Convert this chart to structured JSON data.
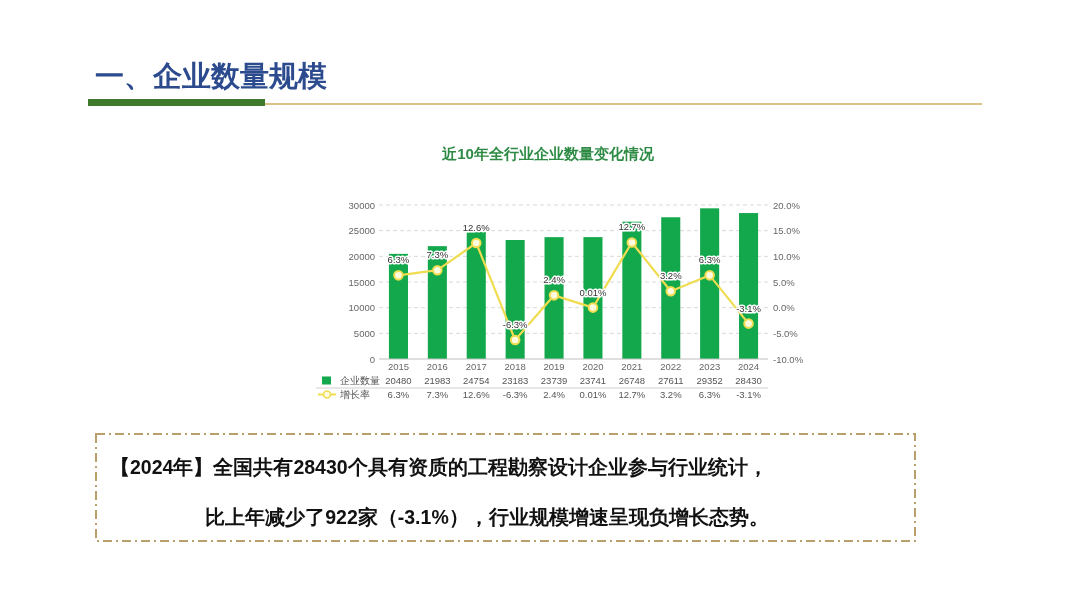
{
  "chart_data": {
    "type": "bar",
    "title": "一、企业数量规模",
    "subtitle": "近10年全行业企业数量变化情况",
    "categories": [
      "2015",
      "2016",
      "2017",
      "2018",
      "2019",
      "2020",
      "2021",
      "2022",
      "2023",
      "2024"
    ],
    "series": [
      {
        "name": "企业数量",
        "color": "#12a84b",
        "values": [
          20480,
          21983,
          24754,
          23183,
          23739,
          23741,
          26748,
          27611,
          29352,
          28430
        ]
      },
      {
        "name": "增长率",
        "type": "line",
        "axis": "y2",
        "color": "#f0dc50",
        "values": [
          6.3,
          7.3,
          12.6,
          -6.3,
          2.4,
          0.01,
          12.7,
          3.2,
          6.3,
          -3.1
        ],
        "value_labels": [
          "6.3%",
          "7.3%",
          "12.6%",
          "-6.3%",
          "2.4%",
          "0.01%",
          "12.7%",
          "3.2%",
          "6.3%",
          "-3.1%"
        ]
      }
    ],
    "ylim": [
      0,
      30000
    ],
    "yticks": [
      0,
      5000,
      10000,
      15000,
      20000,
      25000,
      30000
    ],
    "y2lim": [
      -10,
      20
    ],
    "y2ticks": [
      {
        "value": -10,
        "label": "-10.0%"
      },
      {
        "value": -5,
        "label": "-5.0%"
      },
      {
        "value": 0,
        "label": "0.0%"
      },
      {
        "value": 5,
        "label": "5.0%"
      },
      {
        "value": 10,
        "label": "10.0%"
      },
      {
        "value": 15,
        "label": "15.0%"
      },
      {
        "value": 20,
        "label": "20.0%"
      }
    ],
    "grid": "y",
    "legend": "bottom",
    "data_labels": true,
    "marker": "circle",
    "line_style": "solid",
    "annotations": [
      "【2024年】全国共有28430个具有资质的工程勘察设计企业参与行业统计，",
      "比上年减少了922家（-3.1%），行业规模增速呈现负增长态势。"
    ]
  }
}
